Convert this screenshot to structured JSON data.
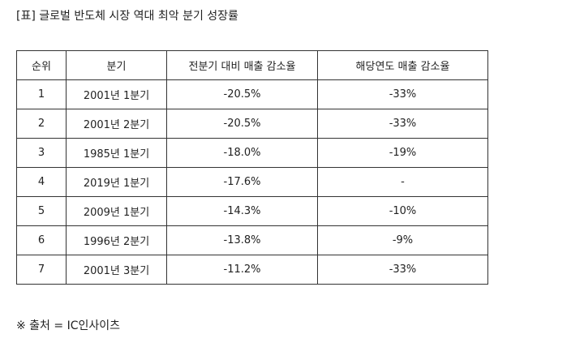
{
  "caption": "[표] 글로벌 반도체 시장 역대 최악 분기 성장률",
  "table": {
    "headers": [
      "순위",
      "분기",
      "전분기 대비 매출 감소율",
      "해당연도 매출 감소율"
    ],
    "rows": [
      [
        "1",
        "2001년 1분기",
        "-20.5%",
        "-33%"
      ],
      [
        "2",
        "2001년 2분기",
        "-20.5%",
        "-33%"
      ],
      [
        "3",
        "1985년 1분기",
        "-18.0%",
        "-19%"
      ],
      [
        "4",
        "2019년 1분기",
        "-17.6%",
        "-"
      ],
      [
        "5",
        "2009년 1분기",
        "-14.3%",
        "-10%"
      ],
      [
        "6",
        "1996년 2분기",
        "-13.8%",
        "-9%"
      ],
      [
        "7",
        "2001년 3분기",
        "-11.2%",
        "-33%"
      ]
    ]
  },
  "source": "※ 출처 = IC인사이츠"
}
